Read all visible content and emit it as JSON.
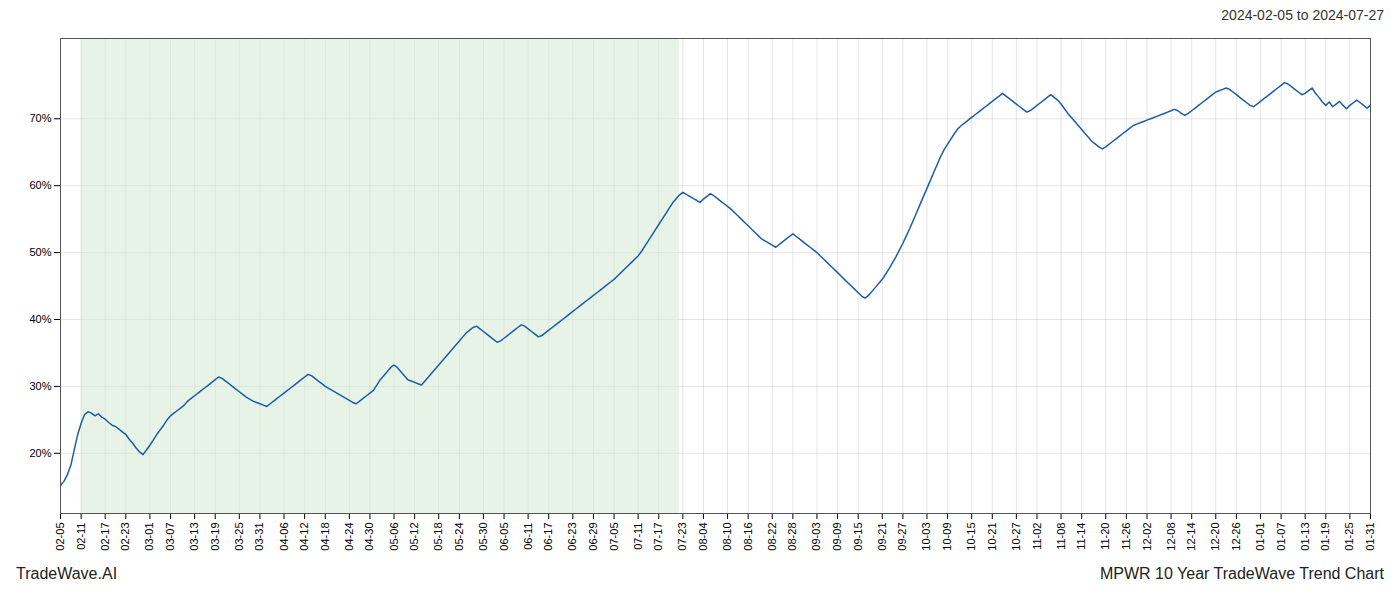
{
  "chart_data": {
    "type": "line",
    "title": "2024-02-05 to 2024-07-27",
    "annotations": [
      "TradeWave.AI",
      "MPWR 10 Year TradeWave Trend Chart"
    ],
    "categories": [
      "02-05",
      null,
      null,
      null,
      null,
      null,
      "02-11",
      null,
      null,
      null,
      null,
      null,
      null,
      "02-17",
      null,
      null,
      null,
      null,
      null,
      "02-23",
      null,
      null,
      null,
      null,
      null,
      null,
      "03-01",
      null,
      null,
      null,
      null,
      null,
      "03-07",
      null,
      null,
      null,
      null,
      null,
      null,
      "03-13",
      null,
      null,
      null,
      null,
      null,
      "03-19",
      null,
      null,
      null,
      null,
      null,
      null,
      "03-25",
      null,
      null,
      null,
      null,
      null,
      "03-31",
      null,
      null,
      null,
      null,
      null,
      null,
      "04-06",
      null,
      null,
      null,
      null,
      null,
      "04-12",
      null,
      null,
      null,
      null,
      null,
      "04-18",
      null,
      null,
      null,
      null,
      null,
      null,
      "04-24",
      null,
      null,
      null,
      null,
      null,
      "04-30",
      null,
      null,
      null,
      null,
      null,
      null,
      "05-06",
      null,
      null,
      null,
      null,
      null,
      "05-12",
      null,
      null,
      null,
      null,
      null,
      null,
      "05-18",
      null,
      null,
      null,
      null,
      null,
      "05-24",
      null,
      null,
      null,
      null,
      null,
      null,
      "05-30",
      null,
      null,
      null,
      null,
      null,
      "06-05",
      null,
      null,
      null,
      null,
      null,
      null,
      "06-11",
      null,
      null,
      null,
      null,
      null,
      "06-17",
      null,
      null,
      null,
      null,
      null,
      null,
      "06-23",
      null,
      null,
      null,
      null,
      null,
      "06-29",
      null,
      null,
      null,
      null,
      null,
      "07-05",
      null,
      null,
      null,
      null,
      null,
      null,
      "07-11",
      null,
      null,
      null,
      null,
      null,
      "07-17",
      null,
      null,
      null,
      null,
      null,
      null,
      "07-23",
      null,
      null,
      null,
      null,
      null,
      "08-04",
      null,
      null,
      null,
      null,
      null,
      null,
      "08-10",
      null,
      null,
      null,
      null,
      null,
      "08-16",
      null,
      null,
      null,
      null,
      null,
      null,
      "08-22",
      null,
      null,
      null,
      null,
      null,
      "08-28",
      null,
      null,
      null,
      null,
      null,
      null,
      "09-03",
      null,
      null,
      null,
      null,
      null,
      "09-09",
      null,
      null,
      null,
      null,
      null,
      "09-15",
      null,
      null,
      null,
      null,
      null,
      null,
      "09-21",
      null,
      null,
      null,
      null,
      null,
      "09-27",
      null,
      null,
      null,
      null,
      null,
      null,
      "10-03",
      null,
      null,
      null,
      null,
      null,
      "10-09",
      null,
      null,
      null,
      null,
      null,
      null,
      "10-15",
      null,
      null,
      null,
      null,
      null,
      "10-21",
      null,
      null,
      null,
      null,
      null,
      null,
      "10-27",
      null,
      null,
      null,
      null,
      null,
      "11-02",
      null,
      null,
      null,
      null,
      null,
      null,
      "11-08",
      null,
      null,
      null,
      null,
      null,
      "11-14",
      null,
      null,
      null,
      null,
      null,
      null,
      "11-20",
      null,
      null,
      null,
      null,
      null,
      "11-26",
      null,
      null,
      null,
      null,
      null,
      "12-02",
      null,
      null,
      null,
      null,
      null,
      null,
      "12-08",
      null,
      null,
      null,
      null,
      null,
      "12-14",
      null,
      null,
      null,
      null,
      null,
      null,
      "12-20",
      null,
      null,
      null,
      null,
      null,
      "12-26",
      null,
      null,
      null,
      null,
      null,
      null,
      "01-01",
      null,
      null,
      null,
      null,
      null,
      "01-07",
      null,
      null,
      null,
      null,
      null,
      null,
      "01-13",
      null,
      null,
      null,
      null,
      null,
      "01-19",
      null,
      null,
      null,
      null,
      null,
      null,
      "01-25",
      null,
      null,
      null,
      null,
      null,
      "01-31"
    ],
    "values": [
      15.2,
      15.8,
      16.8,
      18.2,
      20.5,
      22.8,
      24.5,
      25.8,
      26.2,
      26.0,
      25.6,
      25.9,
      25.4,
      25.1,
      24.6,
      24.2,
      24.0,
      23.6,
      23.2,
      22.8,
      22.1,
      21.5,
      20.8,
      20.2,
      19.8,
      20.5,
      21.2,
      22.0,
      22.8,
      23.5,
      24.2,
      25.0,
      25.6,
      26.0,
      26.4,
      26.8,
      27.2,
      27.8,
      28.2,
      28.6,
      29.0,
      29.4,
      29.8,
      30.2,
      30.6,
      31.0,
      31.4,
      31.2,
      30.8,
      30.4,
      30.0,
      29.6,
      29.2,
      28.8,
      28.4,
      28.1,
      27.8,
      27.6,
      27.4,
      27.2,
      27.0,
      27.4,
      27.8,
      28.2,
      28.6,
      29.0,
      29.4,
      29.8,
      30.2,
      30.6,
      31.0,
      31.4,
      31.8,
      31.6,
      31.2,
      30.8,
      30.4,
      30.0,
      29.7,
      29.4,
      29.1,
      28.8,
      28.5,
      28.2,
      27.9,
      27.6,
      27.4,
      27.8,
      28.2,
      28.6,
      29.0,
      29.4,
      30.2,
      31.0,
      31.6,
      32.2,
      32.8,
      33.2,
      32.8,
      32.2,
      31.6,
      31.0,
      30.8,
      30.6,
      30.4,
      30.2,
      30.8,
      31.4,
      32.0,
      32.6,
      33.2,
      33.8,
      34.4,
      35.0,
      35.6,
      36.2,
      36.8,
      37.4,
      38.0,
      38.4,
      38.8,
      39.0,
      38.6,
      38.2,
      37.8,
      37.4,
      37.0,
      36.6,
      36.8,
      37.2,
      37.6,
      38.0,
      38.4,
      38.8,
      39.2,
      39.0,
      38.6,
      38.2,
      37.8,
      37.4,
      37.6,
      38.0,
      38.4,
      38.8,
      39.2,
      39.6,
      40.0,
      40.4,
      40.8,
      41.2,
      41.6,
      42.0,
      42.4,
      42.8,
      43.2,
      43.6,
      44.0,
      44.4,
      44.8,
      45.2,
      45.6,
      46.0,
      46.5,
      47.0,
      47.5,
      48.0,
      48.5,
      49.0,
      49.5,
      50.2,
      51.0,
      51.8,
      52.6,
      53.4,
      54.2,
      55.0,
      55.8,
      56.6,
      57.4,
      58.0,
      58.6,
      59.0,
      58.7,
      58.4,
      58.1,
      57.8,
      57.5,
      58.0,
      58.4,
      58.8,
      58.5,
      58.1,
      57.7,
      57.3,
      56.9,
      56.5,
      56.0,
      55.5,
      55.0,
      54.5,
      54.0,
      53.5,
      53.0,
      52.5,
      52.0,
      51.7,
      51.4,
      51.1,
      50.8,
      51.2,
      51.6,
      52.0,
      52.4,
      52.8,
      52.4,
      52.0,
      51.6,
      51.2,
      50.8,
      50.4,
      50.0,
      49.5,
      49.0,
      48.5,
      48.0,
      47.5,
      47.0,
      46.5,
      46.0,
      45.5,
      45.0,
      44.5,
      44.0,
      43.5,
      43.2,
      43.6,
      44.2,
      44.8,
      45.4,
      46.0,
      46.8,
      47.6,
      48.5,
      49.4,
      50.4,
      51.4,
      52.5,
      53.6,
      54.8,
      56.0,
      57.2,
      58.4,
      59.6,
      60.8,
      62.0,
      63.2,
      64.4,
      65.4,
      66.2,
      67.0,
      67.8,
      68.5,
      69.0,
      69.4,
      69.8,
      70.2,
      70.6,
      71.0,
      71.4,
      71.8,
      72.2,
      72.6,
      73.0,
      73.4,
      73.8,
      73.4,
      73.0,
      72.6,
      72.2,
      71.8,
      71.4,
      71.0,
      71.2,
      71.6,
      72.0,
      72.4,
      72.8,
      73.2,
      73.6,
      73.2,
      72.8,
      72.2,
      71.5,
      70.8,
      70.2,
      69.6,
      69.0,
      68.4,
      67.8,
      67.2,
      66.6,
      66.2,
      65.8,
      65.5,
      65.8,
      66.2,
      66.6,
      67.0,
      67.4,
      67.8,
      68.2,
      68.6,
      69.0,
      69.2,
      69.4,
      69.6,
      69.8,
      70.0,
      70.2,
      70.4,
      70.6,
      70.8,
      71.0,
      71.2,
      71.4,
      71.2,
      70.8,
      70.5,
      70.8,
      71.2,
      71.6,
      72.0,
      72.4,
      72.8,
      73.2,
      73.6,
      74.0,
      74.2,
      74.4,
      74.6,
      74.4,
      74.0,
      73.6,
      73.2,
      72.8,
      72.4,
      72.0,
      71.8,
      72.2,
      72.6,
      73.0,
      73.4,
      73.8,
      74.2,
      74.6,
      75.0,
      75.4,
      75.2,
      74.8,
      74.4,
      74.0,
      73.6,
      73.8,
      74.2,
      74.6,
      73.8,
      73.2,
      72.5,
      72.0,
      72.5,
      71.8,
      72.2,
      72.6,
      72.0,
      71.5,
      72.0,
      72.4,
      72.8,
      72.4,
      72.0,
      71.6,
      72.0
    ],
    "color": "#1a5ea8",
    "shade": {
      "x": [
        6,
        180
      ],
      "color": "#d6ead6"
    },
    "ylim": [
      11,
      82
    ],
    "yticks": [
      {
        "value": 20,
        "label": "20%"
      },
      {
        "value": 30,
        "label": "30%"
      },
      {
        "value": 40,
        "label": "40%"
      },
      {
        "value": 50,
        "label": "50%"
      },
      {
        "value": 60,
        "label": "60%"
      },
      {
        "value": 70,
        "label": "70%"
      }
    ],
    "grid": true
  }
}
